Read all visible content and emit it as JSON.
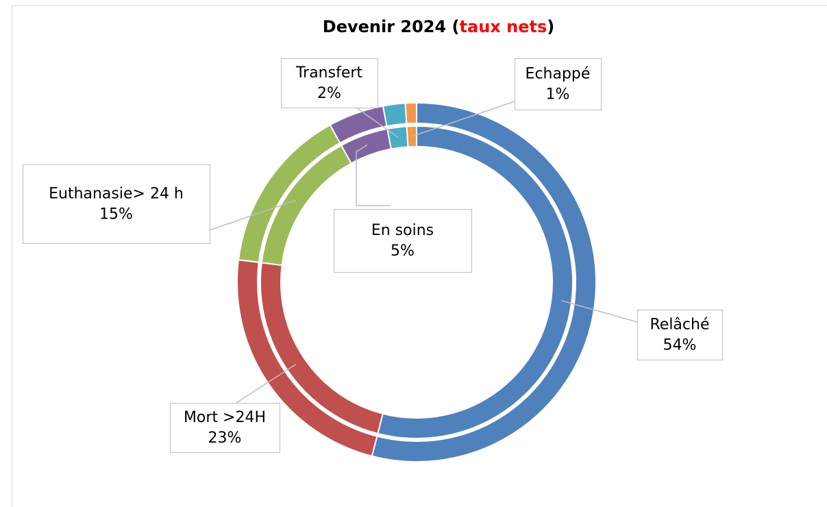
{
  "chart_data": {
    "type": "donut",
    "title_parts": [
      {
        "text": "Devenir 2024 (",
        "color": "#000000"
      },
      {
        "text": "taux nets",
        "color": "#ff0000"
      },
      {
        "text": ")",
        "color": "#000000"
      }
    ],
    "categories": [
      "Relâché",
      "Mort >24H",
      "Euthanasie> 24 h",
      "En soins",
      "Transfert",
      "Echappé"
    ],
    "colors": [
      "#4f81bd",
      "#c0504d",
      "#9bbb59",
      "#8064a2",
      "#4bacc6",
      "#f79646"
    ],
    "series": [
      {
        "values": [
          54,
          23,
          15,
          5,
          2,
          1
        ]
      },
      {
        "values": [
          54,
          23,
          15,
          5,
          2,
          1
        ],
        "value_labels": [
          "54%",
          "23%",
          "15%",
          "5%",
          "2%",
          "1%"
        ]
      }
    ]
  }
}
